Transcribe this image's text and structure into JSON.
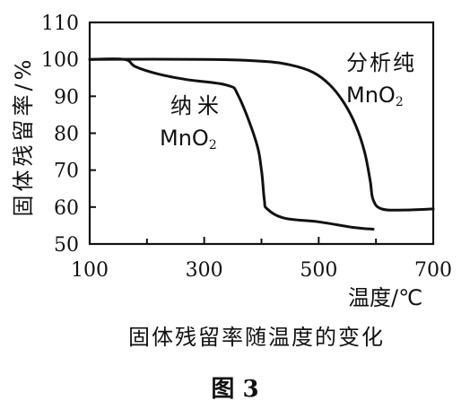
{
  "chart_data": {
    "type": "line",
    "xlabel": "温度/℃",
    "ylabel": "固体残留率/%",
    "xlim": [
      100,
      700
    ],
    "ylim": [
      50,
      110
    ],
    "x_ticks": [
      "100",
      "300",
      "500",
      "700"
    ],
    "y_ticks": [
      "50",
      "60",
      "70",
      "80",
      "90",
      "100",
      "110"
    ],
    "series": [
      {
        "name": "纳米MnO2",
        "label_line1": "纳米",
        "label_formula_main": "MnO",
        "label_formula_sub": "2",
        "points": [
          [
            100,
            100
          ],
          [
            160,
            100
          ],
          [
            180,
            98
          ],
          [
            220,
            96
          ],
          [
            270,
            94.5
          ],
          [
            340,
            93
          ],
          [
            360,
            90
          ],
          [
            390,
            78
          ],
          [
            400,
            70
          ],
          [
            405,
            62
          ],
          [
            410,
            59.5
          ],
          [
            440,
            57
          ],
          [
            500,
            56
          ],
          [
            560,
            54.5
          ],
          [
            595,
            54
          ]
        ]
      },
      {
        "name": "分析纯MnO2",
        "label_line1": "分析纯",
        "label_formula_main": "MnO",
        "label_formula_sub": "2",
        "points": [
          [
            100,
            100
          ],
          [
            300,
            100
          ],
          [
            400,
            99.5
          ],
          [
            450,
            98.5
          ],
          [
            490,
            96.5
          ],
          [
            520,
            93
          ],
          [
            545,
            88
          ],
          [
            565,
            82
          ],
          [
            580,
            75
          ],
          [
            590,
            67
          ],
          [
            595,
            62
          ],
          [
            610,
            59.5
          ],
          [
            650,
            59.2
          ],
          [
            700,
            59.5
          ]
        ]
      }
    ],
    "caption": "固体残留率随温度的变化",
    "figure_label": "图 3"
  }
}
